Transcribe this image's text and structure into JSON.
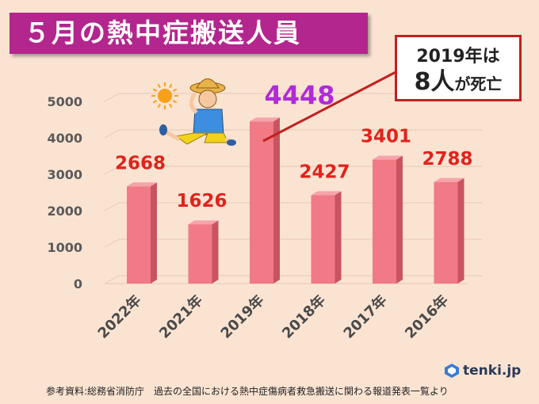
{
  "title": "５月の熱中症搬送人員",
  "callout": {
    "line1": "2019年は",
    "line2_main": "8人",
    "line2_small": "が死亡"
  },
  "footer": {
    "source": "参考資料:総務省消防庁　過去の全国における熱中症傷病者救急搬送に関わる報道発表一覧より"
  },
  "logo": {
    "text": "tenki.jp"
  },
  "colors": {
    "bar": "#f07a85",
    "label_red": "#e0231c",
    "label_highlight": "#b02bd8",
    "title_bg": "#b3268e"
  },
  "chart_data": {
    "type": "bar",
    "categories": [
      "2022年",
      "2021年",
      "2019年",
      "2018年",
      "2017年",
      "2016年"
    ],
    "values": [
      2668,
      1626,
      4448,
      2427,
      3401,
      2788
    ],
    "highlight_index": 2,
    "ylim": [
      0,
      5000
    ],
    "yticks": [
      0,
      1000,
      2000,
      3000,
      4000,
      5000
    ],
    "grid": true,
    "title": "５月の熱中症搬送人員",
    "xlabel": "",
    "ylabel": ""
  }
}
